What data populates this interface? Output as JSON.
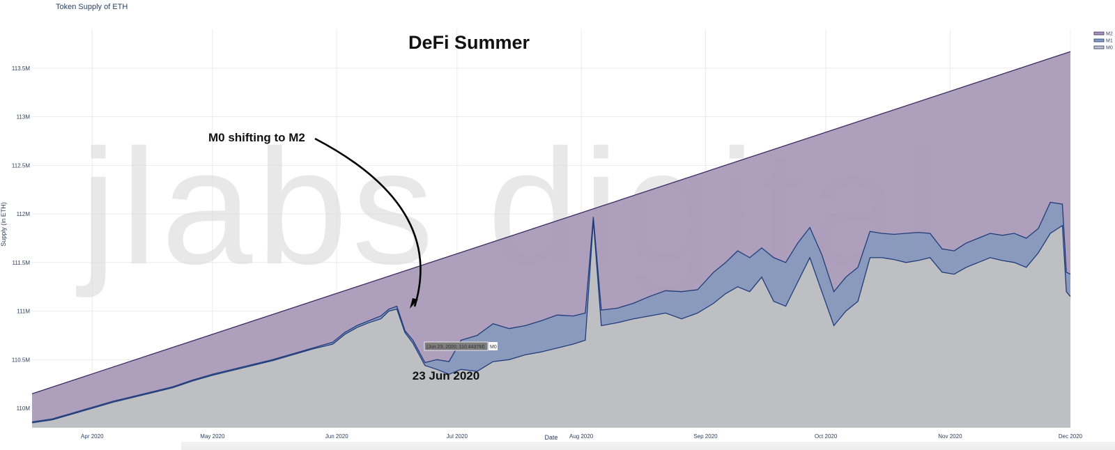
{
  "page": {
    "title": "Token Supply of ETH"
  },
  "watermark": {
    "text": "jlabs digital"
  },
  "annotations": {
    "headline": "DeFi Summer",
    "arrow_label": "M0 shifting to M2",
    "date_label": "23 Jun 2020"
  },
  "tooltip": {
    "text": "(Jun 23, 2020, 110.4437M)",
    "series": "M0"
  },
  "colors": {
    "m2_fill": "#a797b7",
    "m2_line": "#3b2a63",
    "m1_fill": "#8799bd",
    "m1_line": "#1f3b7a",
    "m0_fill": "#c2c2c2",
    "grid": "#ebebeb",
    "background": "#ffffff"
  },
  "chart_data": {
    "type": "area",
    "title": "Token Supply of ETH",
    "xlabel": "Date",
    "ylabel": "Supply (in ETH)",
    "xlim": [
      "2020-03-17",
      "2020-12-01"
    ],
    "ylim": [
      109.8,
      113.9
    ],
    "x_ticks": [
      {
        "date": "2020-04-01",
        "label": "Apr 2020"
      },
      {
        "date": "2020-05-01",
        "label": "May 2020"
      },
      {
        "date": "2020-06-01",
        "label": "Jun 2020"
      },
      {
        "date": "2020-07-01",
        "label": "Jul 2020"
      },
      {
        "date": "2020-08-01",
        "label": "Aug 2020"
      },
      {
        "date": "2020-09-01",
        "label": "Sep 2020"
      },
      {
        "date": "2020-10-01",
        "label": "Oct 2020"
      },
      {
        "date": "2020-11-01",
        "label": "Nov 2020"
      },
      {
        "date": "2020-12-01",
        "label": "Dec 2020"
      }
    ],
    "y_ticks": [
      {
        "value": 110.0,
        "label": "110M"
      },
      {
        "value": 110.5,
        "label": "110.5M"
      },
      {
        "value": 111.0,
        "label": "111M"
      },
      {
        "value": 111.5,
        "label": "111.5M"
      },
      {
        "value": 112.0,
        "label": "112M"
      },
      {
        "value": 112.5,
        "label": "112.5M"
      },
      {
        "value": 113.0,
        "label": "113M"
      },
      {
        "value": 113.5,
        "label": "113.5M"
      }
    ],
    "legend_position": "top-right",
    "series": [
      {
        "name": "M2",
        "points": [
          [
            "2020-03-17",
            110.15
          ],
          [
            "2020-12-01",
            113.67
          ]
        ]
      },
      {
        "name": "M1",
        "points": [
          [
            "2020-03-17",
            109.86
          ],
          [
            "2020-03-22",
            109.89
          ],
          [
            "2020-03-27",
            109.95
          ],
          [
            "2020-04-01",
            110.01
          ],
          [
            "2020-04-06",
            110.07
          ],
          [
            "2020-04-11",
            110.12
          ],
          [
            "2020-04-16",
            110.17
          ],
          [
            "2020-04-21",
            110.22
          ],
          [
            "2020-04-26",
            110.29
          ],
          [
            "2020-05-01",
            110.35
          ],
          [
            "2020-05-06",
            110.4
          ],
          [
            "2020-05-11",
            110.45
          ],
          [
            "2020-05-16",
            110.5
          ],
          [
            "2020-05-21",
            110.56
          ],
          [
            "2020-05-26",
            110.62
          ],
          [
            "2020-05-31",
            110.68
          ],
          [
            "2020-06-03",
            110.78
          ],
          [
            "2020-06-06",
            110.85
          ],
          [
            "2020-06-09",
            110.9
          ],
          [
            "2020-06-12",
            110.95
          ],
          [
            "2020-06-14",
            111.02
          ],
          [
            "2020-06-16",
            111.05
          ],
          [
            "2020-06-18",
            110.8
          ],
          [
            "2020-06-20",
            110.7
          ],
          [
            "2020-06-23",
            110.47
          ],
          [
            "2020-06-26",
            110.5
          ],
          [
            "2020-06-29",
            110.48
          ],
          [
            "2020-07-02",
            110.7
          ],
          [
            "2020-07-06",
            110.75
          ],
          [
            "2020-07-10",
            110.87
          ],
          [
            "2020-07-14",
            110.82
          ],
          [
            "2020-07-18",
            110.85
          ],
          [
            "2020-07-22",
            110.9
          ],
          [
            "2020-07-26",
            110.96
          ],
          [
            "2020-07-30",
            110.95
          ],
          [
            "2020-08-02",
            110.98
          ],
          [
            "2020-08-04",
            111.97
          ],
          [
            "2020-08-06",
            111.01
          ],
          [
            "2020-08-10",
            111.03
          ],
          [
            "2020-08-14",
            111.08
          ],
          [
            "2020-08-18",
            111.15
          ],
          [
            "2020-08-22",
            111.21
          ],
          [
            "2020-08-26",
            111.2
          ],
          [
            "2020-08-30",
            111.22
          ],
          [
            "2020-09-03",
            111.4
          ],
          [
            "2020-09-06",
            111.5
          ],
          [
            "2020-09-09",
            111.62
          ],
          [
            "2020-09-12",
            111.55
          ],
          [
            "2020-09-15",
            111.65
          ],
          [
            "2020-09-18",
            111.55
          ],
          [
            "2020-09-21",
            111.5
          ],
          [
            "2020-09-24",
            111.7
          ],
          [
            "2020-09-27",
            111.86
          ],
          [
            "2020-09-30",
            111.58
          ],
          [
            "2020-10-03",
            111.2
          ],
          [
            "2020-10-06",
            111.35
          ],
          [
            "2020-10-09",
            111.45
          ],
          [
            "2020-10-12",
            111.82
          ],
          [
            "2020-10-15",
            111.8
          ],
          [
            "2020-10-18",
            111.79
          ],
          [
            "2020-10-21",
            111.8
          ],
          [
            "2020-10-24",
            111.81
          ],
          [
            "2020-10-27",
            111.8
          ],
          [
            "2020-10-30",
            111.64
          ],
          [
            "2020-11-02",
            111.62
          ],
          [
            "2020-11-05",
            111.7
          ],
          [
            "2020-11-08",
            111.75
          ],
          [
            "2020-11-11",
            111.8
          ],
          [
            "2020-11-14",
            111.78
          ],
          [
            "2020-11-17",
            111.8
          ],
          [
            "2020-11-20",
            111.75
          ],
          [
            "2020-11-23",
            111.85
          ],
          [
            "2020-11-26",
            112.12
          ],
          [
            "2020-11-29",
            112.1
          ],
          [
            "2020-11-30",
            111.4
          ],
          [
            "2020-12-01",
            111.38
          ]
        ]
      },
      {
        "name": "M0",
        "points": [
          [
            "2020-03-17",
            109.85
          ],
          [
            "2020-03-22",
            109.88
          ],
          [
            "2020-03-27",
            109.94
          ],
          [
            "2020-04-01",
            110.0
          ],
          [
            "2020-04-06",
            110.06
          ],
          [
            "2020-04-11",
            110.11
          ],
          [
            "2020-04-16",
            110.16
          ],
          [
            "2020-04-21",
            110.21
          ],
          [
            "2020-04-26",
            110.28
          ],
          [
            "2020-05-01",
            110.34
          ],
          [
            "2020-05-06",
            110.39
          ],
          [
            "2020-05-11",
            110.44
          ],
          [
            "2020-05-16",
            110.49
          ],
          [
            "2020-05-21",
            110.55
          ],
          [
            "2020-05-26",
            110.61
          ],
          [
            "2020-05-31",
            110.66
          ],
          [
            "2020-06-03",
            110.76
          ],
          [
            "2020-06-06",
            110.83
          ],
          [
            "2020-06-09",
            110.88
          ],
          [
            "2020-06-12",
            110.92
          ],
          [
            "2020-06-14",
            111.0
          ],
          [
            "2020-06-16",
            111.02
          ],
          [
            "2020-06-18",
            110.78
          ],
          [
            "2020-06-20",
            110.67
          ],
          [
            "2020-06-23",
            110.44
          ],
          [
            "2020-06-26",
            110.4
          ],
          [
            "2020-06-29",
            110.35
          ],
          [
            "2020-07-02",
            110.4
          ],
          [
            "2020-07-06",
            110.38
          ],
          [
            "2020-07-10",
            110.48
          ],
          [
            "2020-07-14",
            110.5
          ],
          [
            "2020-07-18",
            110.55
          ],
          [
            "2020-07-22",
            110.58
          ],
          [
            "2020-07-26",
            110.62
          ],
          [
            "2020-07-30",
            110.66
          ],
          [
            "2020-08-02",
            110.7
          ],
          [
            "2020-08-04",
            111.93
          ],
          [
            "2020-08-06",
            110.85
          ],
          [
            "2020-08-10",
            110.88
          ],
          [
            "2020-08-14",
            110.92
          ],
          [
            "2020-08-18",
            110.95
          ],
          [
            "2020-08-22",
            110.98
          ],
          [
            "2020-08-26",
            110.92
          ],
          [
            "2020-08-30",
            110.98
          ],
          [
            "2020-09-03",
            111.08
          ],
          [
            "2020-09-06",
            111.18
          ],
          [
            "2020-09-09",
            111.25
          ],
          [
            "2020-09-12",
            111.2
          ],
          [
            "2020-09-15",
            111.35
          ],
          [
            "2020-09-18",
            111.1
          ],
          [
            "2020-09-21",
            111.05
          ],
          [
            "2020-09-24",
            111.3
          ],
          [
            "2020-09-27",
            111.55
          ],
          [
            "2020-09-30",
            111.2
          ],
          [
            "2020-10-03",
            110.85
          ],
          [
            "2020-10-06",
            111.0
          ],
          [
            "2020-10-09",
            111.1
          ],
          [
            "2020-10-12",
            111.55
          ],
          [
            "2020-10-15",
            111.55
          ],
          [
            "2020-10-18",
            111.53
          ],
          [
            "2020-10-21",
            111.5
          ],
          [
            "2020-10-24",
            111.52
          ],
          [
            "2020-10-27",
            111.55
          ],
          [
            "2020-10-30",
            111.4
          ],
          [
            "2020-11-02",
            111.38
          ],
          [
            "2020-11-05",
            111.45
          ],
          [
            "2020-11-08",
            111.5
          ],
          [
            "2020-11-11",
            111.55
          ],
          [
            "2020-11-14",
            111.52
          ],
          [
            "2020-11-17",
            111.5
          ],
          [
            "2020-11-20",
            111.45
          ],
          [
            "2020-11-23",
            111.6
          ],
          [
            "2020-11-26",
            111.8
          ],
          [
            "2020-11-29",
            111.88
          ],
          [
            "2020-11-30",
            111.2
          ],
          [
            "2020-12-01",
            111.15
          ]
        ]
      }
    ]
  }
}
